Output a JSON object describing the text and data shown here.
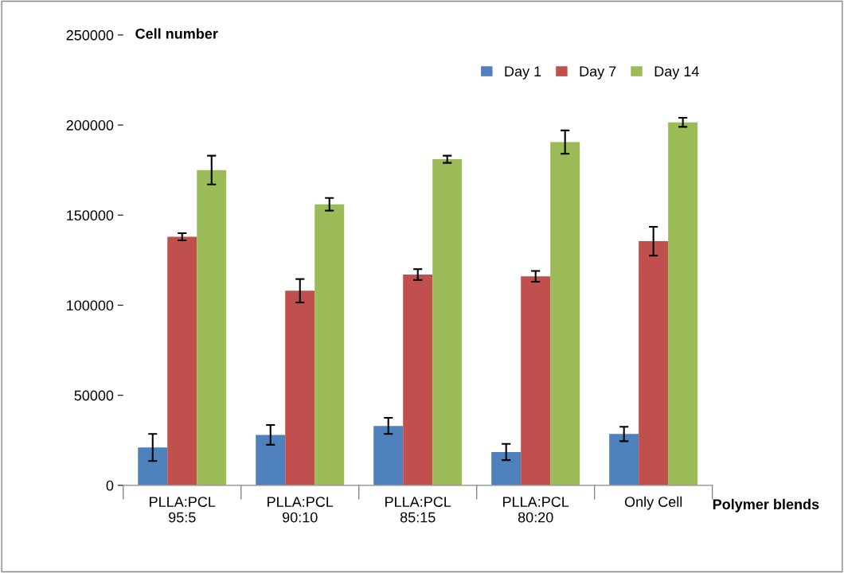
{
  "chart_data": {
    "type": "bar",
    "xlabel": "Polymer blends",
    "ylabel": "Cell number",
    "categories": [
      "PLLA:PCL\n95:5",
      "PLLA:PCL\n90:10",
      "PLLA:PCL\n85:15",
      "PLLA:PCL\n80:20",
      "Only Cell"
    ],
    "series": [
      {
        "name": "Day 1",
        "color": "#4f81bd",
        "values": [
          21000,
          28000,
          33000,
          18500,
          28500
        ],
        "errors": [
          7500,
          5500,
          4500,
          4500,
          4000
        ]
      },
      {
        "name": "Day 7",
        "color": "#c0504d",
        "values": [
          138000,
          108000,
          117000,
          116000,
          135500
        ],
        "errors": [
          2000,
          6500,
          3000,
          3000,
          8000
        ]
      },
      {
        "name": "Day 14",
        "color": "#9bbb59",
        "values": [
          175000,
          156000,
          181000,
          190500,
          201500
        ],
        "errors": [
          8000,
          3500,
          2000,
          6500,
          2500
        ]
      }
    ],
    "ylim": [
      0,
      250000
    ],
    "yticks": [
      0,
      50000,
      100000,
      150000,
      200000,
      250000
    ],
    "grid": false,
    "legend": "top right"
  }
}
